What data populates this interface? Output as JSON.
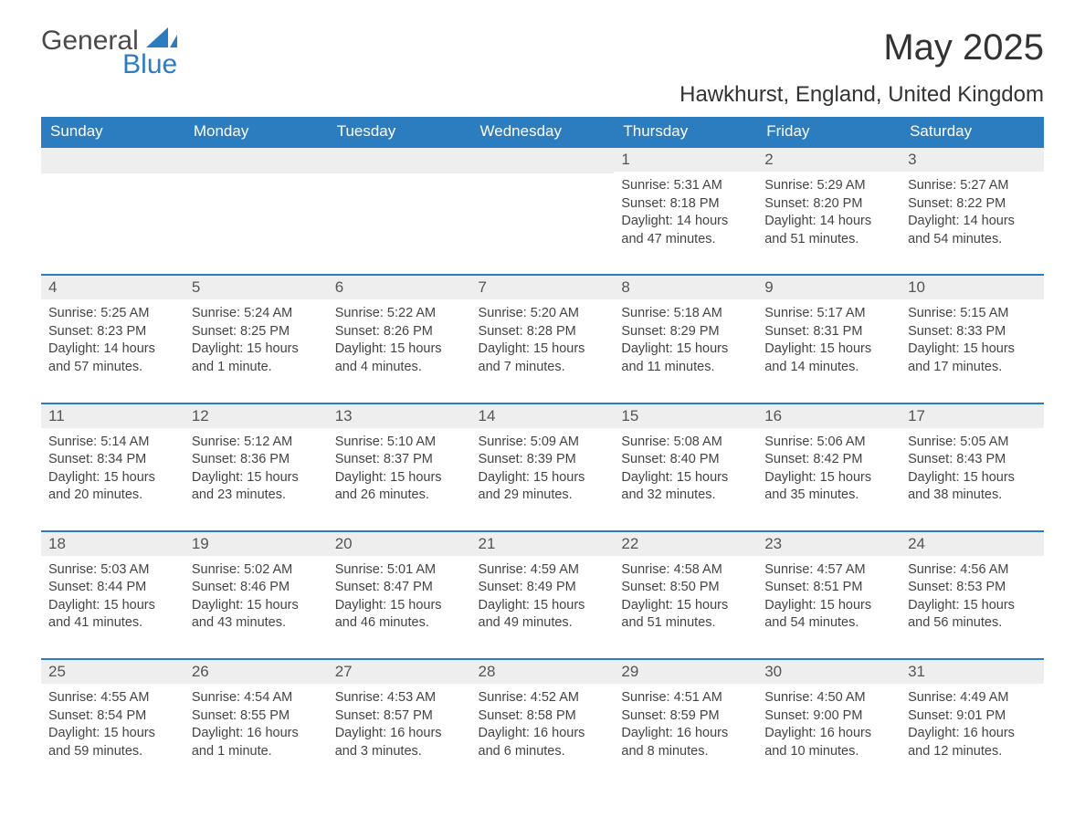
{
  "logo": {
    "word1": "General",
    "word2": "Blue",
    "color1": "#4a4a4a",
    "color2": "#2c7cc0"
  },
  "title": "May 2025",
  "location": "Hawkhurst, England, United Kingdom",
  "header_bg": "#2c7cc0",
  "header_fg": "#ffffff",
  "daynum_bg": "#eeeeee",
  "border_color": "#2c7cc0",
  "text_color": "#333333",
  "weekdays": [
    "Sunday",
    "Monday",
    "Tuesday",
    "Wednesday",
    "Thursday",
    "Friday",
    "Saturday"
  ],
  "weeks": [
    [
      null,
      null,
      null,
      null,
      {
        "n": "1",
        "sunrise": "Sunrise: 5:31 AM",
        "sunset": "Sunset: 8:18 PM",
        "daylight": "Daylight: 14 hours and 47 minutes."
      },
      {
        "n": "2",
        "sunrise": "Sunrise: 5:29 AM",
        "sunset": "Sunset: 8:20 PM",
        "daylight": "Daylight: 14 hours and 51 minutes."
      },
      {
        "n": "3",
        "sunrise": "Sunrise: 5:27 AM",
        "sunset": "Sunset: 8:22 PM",
        "daylight": "Daylight: 14 hours and 54 minutes."
      }
    ],
    [
      {
        "n": "4",
        "sunrise": "Sunrise: 5:25 AM",
        "sunset": "Sunset: 8:23 PM",
        "daylight": "Daylight: 14 hours and 57 minutes."
      },
      {
        "n": "5",
        "sunrise": "Sunrise: 5:24 AM",
        "sunset": "Sunset: 8:25 PM",
        "daylight": "Daylight: 15 hours and 1 minute."
      },
      {
        "n": "6",
        "sunrise": "Sunrise: 5:22 AM",
        "sunset": "Sunset: 8:26 PM",
        "daylight": "Daylight: 15 hours and 4 minutes."
      },
      {
        "n": "7",
        "sunrise": "Sunrise: 5:20 AM",
        "sunset": "Sunset: 8:28 PM",
        "daylight": "Daylight: 15 hours and 7 minutes."
      },
      {
        "n": "8",
        "sunrise": "Sunrise: 5:18 AM",
        "sunset": "Sunset: 8:29 PM",
        "daylight": "Daylight: 15 hours and 11 minutes."
      },
      {
        "n": "9",
        "sunrise": "Sunrise: 5:17 AM",
        "sunset": "Sunset: 8:31 PM",
        "daylight": "Daylight: 15 hours and 14 minutes."
      },
      {
        "n": "10",
        "sunrise": "Sunrise: 5:15 AM",
        "sunset": "Sunset: 8:33 PM",
        "daylight": "Daylight: 15 hours and 17 minutes."
      }
    ],
    [
      {
        "n": "11",
        "sunrise": "Sunrise: 5:14 AM",
        "sunset": "Sunset: 8:34 PM",
        "daylight": "Daylight: 15 hours and 20 minutes."
      },
      {
        "n": "12",
        "sunrise": "Sunrise: 5:12 AM",
        "sunset": "Sunset: 8:36 PM",
        "daylight": "Daylight: 15 hours and 23 minutes."
      },
      {
        "n": "13",
        "sunrise": "Sunrise: 5:10 AM",
        "sunset": "Sunset: 8:37 PM",
        "daylight": "Daylight: 15 hours and 26 minutes."
      },
      {
        "n": "14",
        "sunrise": "Sunrise: 5:09 AM",
        "sunset": "Sunset: 8:39 PM",
        "daylight": "Daylight: 15 hours and 29 minutes."
      },
      {
        "n": "15",
        "sunrise": "Sunrise: 5:08 AM",
        "sunset": "Sunset: 8:40 PM",
        "daylight": "Daylight: 15 hours and 32 minutes."
      },
      {
        "n": "16",
        "sunrise": "Sunrise: 5:06 AM",
        "sunset": "Sunset: 8:42 PM",
        "daylight": "Daylight: 15 hours and 35 minutes."
      },
      {
        "n": "17",
        "sunrise": "Sunrise: 5:05 AM",
        "sunset": "Sunset: 8:43 PM",
        "daylight": "Daylight: 15 hours and 38 minutes."
      }
    ],
    [
      {
        "n": "18",
        "sunrise": "Sunrise: 5:03 AM",
        "sunset": "Sunset: 8:44 PM",
        "daylight": "Daylight: 15 hours and 41 minutes."
      },
      {
        "n": "19",
        "sunrise": "Sunrise: 5:02 AM",
        "sunset": "Sunset: 8:46 PM",
        "daylight": "Daylight: 15 hours and 43 minutes."
      },
      {
        "n": "20",
        "sunrise": "Sunrise: 5:01 AM",
        "sunset": "Sunset: 8:47 PM",
        "daylight": "Daylight: 15 hours and 46 minutes."
      },
      {
        "n": "21",
        "sunrise": "Sunrise: 4:59 AM",
        "sunset": "Sunset: 8:49 PM",
        "daylight": "Daylight: 15 hours and 49 minutes."
      },
      {
        "n": "22",
        "sunrise": "Sunrise: 4:58 AM",
        "sunset": "Sunset: 8:50 PM",
        "daylight": "Daylight: 15 hours and 51 minutes."
      },
      {
        "n": "23",
        "sunrise": "Sunrise: 4:57 AM",
        "sunset": "Sunset: 8:51 PM",
        "daylight": "Daylight: 15 hours and 54 minutes."
      },
      {
        "n": "24",
        "sunrise": "Sunrise: 4:56 AM",
        "sunset": "Sunset: 8:53 PM",
        "daylight": "Daylight: 15 hours and 56 minutes."
      }
    ],
    [
      {
        "n": "25",
        "sunrise": "Sunrise: 4:55 AM",
        "sunset": "Sunset: 8:54 PM",
        "daylight": "Daylight: 15 hours and 59 minutes."
      },
      {
        "n": "26",
        "sunrise": "Sunrise: 4:54 AM",
        "sunset": "Sunset: 8:55 PM",
        "daylight": "Daylight: 16 hours and 1 minute."
      },
      {
        "n": "27",
        "sunrise": "Sunrise: 4:53 AM",
        "sunset": "Sunset: 8:57 PM",
        "daylight": "Daylight: 16 hours and 3 minutes."
      },
      {
        "n": "28",
        "sunrise": "Sunrise: 4:52 AM",
        "sunset": "Sunset: 8:58 PM",
        "daylight": "Daylight: 16 hours and 6 minutes."
      },
      {
        "n": "29",
        "sunrise": "Sunrise: 4:51 AM",
        "sunset": "Sunset: 8:59 PM",
        "daylight": "Daylight: 16 hours and 8 minutes."
      },
      {
        "n": "30",
        "sunrise": "Sunrise: 4:50 AM",
        "sunset": "Sunset: 9:00 PM",
        "daylight": "Daylight: 16 hours and 10 minutes."
      },
      {
        "n": "31",
        "sunrise": "Sunrise: 4:49 AM",
        "sunset": "Sunset: 9:01 PM",
        "daylight": "Daylight: 16 hours and 12 minutes."
      }
    ]
  ]
}
